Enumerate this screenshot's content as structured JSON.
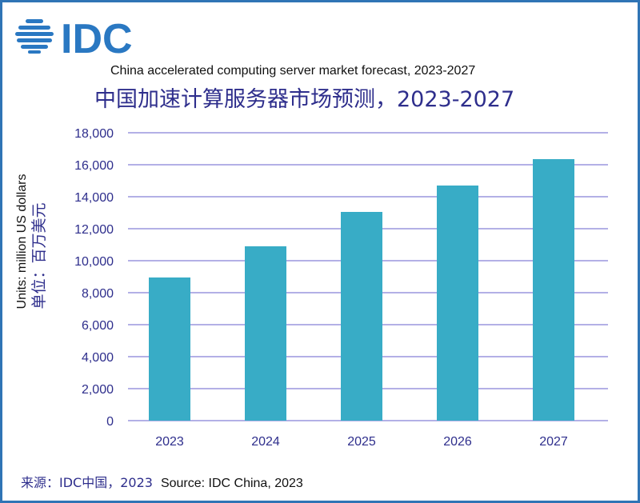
{
  "logo": {
    "text": "IDC",
    "color": "#2A78C2"
  },
  "title_en": "China accelerated computing server market forecast, 2023-2027",
  "title_zh": "中国加速计算服务器市场预测，2023-2027",
  "source_zh": "来源：IDC中国，2023",
  "source_en": "Source: IDC China, 2023",
  "colors": {
    "bar": "#38ACC6",
    "grid": "#B3B0E6",
    "tick_text": "#2E2E8C",
    "border": "#2F74B5"
  },
  "chart_data": {
    "type": "bar",
    "categories": [
      "2023",
      "2024",
      "2025",
      "2026",
      "2027"
    ],
    "values": [
      8950,
      10900,
      13050,
      14700,
      16350
    ],
    "title": "China accelerated computing server market forecast, 2023-2027",
    "xlabel": "",
    "ylabel": "Units: million US dollars",
    "ylabel_zh": "单位：百万美元",
    "ylim": [
      0,
      18000
    ],
    "yticks": [
      0,
      2000,
      4000,
      6000,
      8000,
      10000,
      12000,
      14000,
      16000,
      18000
    ],
    "ytick_labels": [
      "0",
      "2,000",
      "4,000",
      "6,000",
      "8,000",
      "10,000",
      "12,000",
      "14,000",
      "16,000",
      "18,000"
    ],
    "grid": true,
    "legend": "none"
  }
}
